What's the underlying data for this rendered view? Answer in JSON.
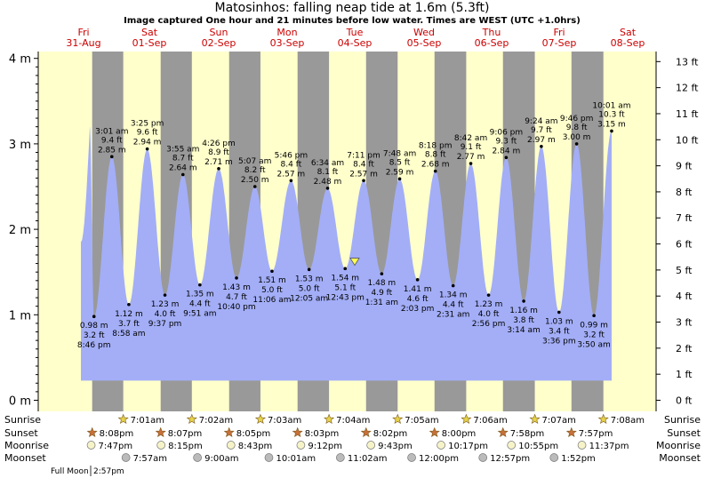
{
  "title": "Matosinhos: falling  neap tide at 1.6m (5.3ft)",
  "subtitle": "Image captured One hour and 21 minutes before low water. Times are WEST (UTC +1.0hrs)",
  "colors": {
    "water": "#a3aef7",
    "day_bg": "#ffffcc",
    "night_bg": "#999999",
    "day_label": "#cc0000",
    "axis": "#000000",
    "star": "#e6d24a",
    "sunset_star": "#c8703a",
    "moon": "#f6f3c8",
    "moonset": "#bbbbbb",
    "marker": "#ffff55"
  },
  "days": [
    {
      "name": "Fri",
      "date": "31-Aug"
    },
    {
      "name": "Sat",
      "date": "01-Sep"
    },
    {
      "name": "Sun",
      "date": "02-Sep"
    },
    {
      "name": "Mon",
      "date": "03-Sep"
    },
    {
      "name": "Tue",
      "date": "04-Sep"
    },
    {
      "name": "Wed",
      "date": "05-Sep"
    },
    {
      "name": "Thu",
      "date": "06-Sep"
    },
    {
      "name": "Fri",
      "date": "07-Sep"
    },
    {
      "name": "Sat",
      "date": "08-Sep"
    }
  ],
  "y_left_ticks": [
    "0 m",
    "1 m",
    "2 m",
    "3 m",
    "4 m"
  ],
  "y_right_ticks": [
    "0 ft",
    "1 ft",
    "2 ft",
    "3 ft",
    "4 ft",
    "5 ft",
    "6 ft",
    "7 ft",
    "8 ft",
    "9 ft",
    "10 ft",
    "11 ft",
    "12 ft",
    "13 ft"
  ],
  "chart_data": {
    "type": "area",
    "title": "Matosinhos: falling  neap tide at 1.6m (5.3ft)",
    "subtitle": "Image captured One hour and 21 minutes before low water. Times are WEST (UTC +1.0hrs)",
    "ylabel_left": "m",
    "ylabel_right": "ft",
    "ylim_m": [
      0,
      4.1
    ],
    "ylim_ft": [
      0,
      13.4
    ],
    "current_level_m": 1.6,
    "current_level_ft": 5.3,
    "series": [
      {
        "type": "low",
        "day": 0,
        "time": "8:46 pm",
        "m": "0.98 m",
        "ft": "3.2 ft",
        "value": 0.98
      },
      {
        "type": "high",
        "day": 1,
        "time": "3:01 am",
        "m": "2.85 m",
        "ft": "9.4 ft",
        "value": 2.85
      },
      {
        "type": "low",
        "day": 1,
        "time": "8:58 am",
        "m": "1.12 m",
        "ft": "3.7 ft",
        "value": 1.12
      },
      {
        "type": "high",
        "day": 1,
        "time": "3:25 pm",
        "m": "2.94 m",
        "ft": "9.6 ft",
        "value": 2.94
      },
      {
        "type": "low",
        "day": 1,
        "time": "9:37 pm",
        "m": "1.23 m",
        "ft": "4.0 ft",
        "value": 1.23
      },
      {
        "type": "high",
        "day": 2,
        "time": "3:55 am",
        "m": "2.64 m",
        "ft": "8.7 ft",
        "value": 2.64
      },
      {
        "type": "low",
        "day": 2,
        "time": "9:51 am",
        "m": "1.35 m",
        "ft": "4.4 ft",
        "value": 1.35
      },
      {
        "type": "high",
        "day": 2,
        "time": "4:26 pm",
        "m": "2.71 m",
        "ft": "8.9 ft",
        "value": 2.71
      },
      {
        "type": "low",
        "day": 2,
        "time": "10:40 pm",
        "m": "1.43 m",
        "ft": "4.7 ft",
        "value": 1.43
      },
      {
        "type": "high",
        "day": 3,
        "time": "5:07 am",
        "m": "2.50 m",
        "ft": "8.2 ft",
        "value": 2.5
      },
      {
        "type": "low",
        "day": 3,
        "time": "11:06 am",
        "m": "1.51 m",
        "ft": "5.0 ft",
        "value": 1.51
      },
      {
        "type": "high",
        "day": 3,
        "time": "5:46 pm",
        "m": "2.57 m",
        "ft": "8.4 ft",
        "value": 2.57
      },
      {
        "type": "low",
        "day": 4,
        "time": "12:05 am",
        "m": "1.53 m",
        "ft": "5.0 ft",
        "value": 1.53
      },
      {
        "type": "high",
        "day": 4,
        "time": "6:34 am",
        "m": "2.48 m",
        "ft": "8.1 ft",
        "value": 2.48
      },
      {
        "type": "low",
        "day": 4,
        "time": "12:43 pm",
        "m": "1.54 m",
        "ft": "5.1 ft",
        "value": 1.54
      },
      {
        "type": "high",
        "day": 4,
        "time": "7:11 pm",
        "m": "2.57 m",
        "ft": "8.4 ft",
        "value": 2.57
      },
      {
        "type": "low",
        "day": 5,
        "time": "1:31 am",
        "m": "1.48 m",
        "ft": "4.9 ft",
        "value": 1.48
      },
      {
        "type": "high",
        "day": 5,
        "time": "7:48 am",
        "m": "2.59 m",
        "ft": "8.5 ft",
        "value": 2.59
      },
      {
        "type": "low",
        "day": 5,
        "time": "2:03 pm",
        "m": "1.41 m",
        "ft": "4.6 ft",
        "value": 1.41
      },
      {
        "type": "high",
        "day": 5,
        "time": "8:18 pm",
        "m": "2.68 m",
        "ft": "8.8 ft",
        "value": 2.68
      },
      {
        "type": "low",
        "day": 6,
        "time": "2:31 am",
        "m": "1.34 m",
        "ft": "4.4 ft",
        "value": 1.34
      },
      {
        "type": "high",
        "day": 6,
        "time": "8:42 am",
        "m": "2.77 m",
        "ft": "9.1 ft",
        "value": 2.77
      },
      {
        "type": "low",
        "day": 6,
        "time": "2:56 pm",
        "m": "1.23 m",
        "ft": "4.0 ft",
        "value": 1.23
      },
      {
        "type": "high",
        "day": 6,
        "time": "9:06 pm",
        "m": "2.84 m",
        "ft": "9.3 ft",
        "value": 2.84
      },
      {
        "type": "low",
        "day": 7,
        "time": "3:14 am",
        "m": "1.16 m",
        "ft": "3.8 ft",
        "value": 1.16
      },
      {
        "type": "high",
        "day": 7,
        "time": "9:24 am",
        "m": "2.97 m",
        "ft": "9.7 ft",
        "value": 2.97
      },
      {
        "type": "low",
        "day": 7,
        "time": "3:36 pm",
        "m": "1.03 m",
        "ft": "3.4 ft",
        "value": 1.03
      },
      {
        "type": "high",
        "day": 7,
        "time": "9:46 pm",
        "m": "3.00 m",
        "ft": "9.8 ft",
        "value": 3.0
      },
      {
        "type": "low",
        "day": 8,
        "time": "3:50 am",
        "m": "0.99 m",
        "ft": "3.2 ft",
        "value": 0.99
      },
      {
        "type": "high",
        "day": 8,
        "time": "10:01 am",
        "m": "3.15 m",
        "ft": "10.3 ft",
        "value": 3.15
      }
    ]
  },
  "astro": {
    "labels": {
      "sunrise": "Sunrise",
      "sunset": "Sunset",
      "moonrise": "Moonrise",
      "moonset": "Moonset"
    },
    "sunrise": [
      {
        "day": 1,
        "time": "7:01am"
      },
      {
        "day": 2,
        "time": "7:02am"
      },
      {
        "day": 3,
        "time": "7:03am"
      },
      {
        "day": 4,
        "time": "7:04am"
      },
      {
        "day": 5,
        "time": "7:05am"
      },
      {
        "day": 6,
        "time": "7:06am"
      },
      {
        "day": 7,
        "time": "7:07am"
      },
      {
        "day": 8,
        "time": "7:08am"
      }
    ],
    "sunset": [
      {
        "day": 0,
        "time": "8:08pm"
      },
      {
        "day": 1,
        "time": "8:07pm"
      },
      {
        "day": 2,
        "time": "8:05pm"
      },
      {
        "day": 3,
        "time": "8:03pm"
      },
      {
        "day": 4,
        "time": "8:02pm"
      },
      {
        "day": 5,
        "time": "8:00pm"
      },
      {
        "day": 6,
        "time": "7:58pm"
      },
      {
        "day": 7,
        "time": "7:57pm"
      }
    ],
    "moonrise": [
      {
        "day": 0,
        "time": "7:47pm"
      },
      {
        "day": 1,
        "time": "8:15pm"
      },
      {
        "day": 2,
        "time": "8:43pm"
      },
      {
        "day": 3,
        "time": "9:12pm"
      },
      {
        "day": 4,
        "time": "9:43pm"
      },
      {
        "day": 5,
        "time": "10:17pm"
      },
      {
        "day": 6,
        "time": "10:55pm"
      },
      {
        "day": 7,
        "time": "11:37pm"
      }
    ],
    "moonset": [
      {
        "day": 1,
        "time": "7:57am"
      },
      {
        "day": 2,
        "time": "9:00am"
      },
      {
        "day": 3,
        "time": "10:01am"
      },
      {
        "day": 4,
        "time": "11:02am"
      },
      {
        "day": 5,
        "time": "12:00pm"
      },
      {
        "day": 6,
        "time": "12:57pm"
      },
      {
        "day": 7,
        "time": "1:52pm"
      }
    ]
  },
  "moon_phase": {
    "label": "Full Moon",
    "time": "2:57pm"
  }
}
